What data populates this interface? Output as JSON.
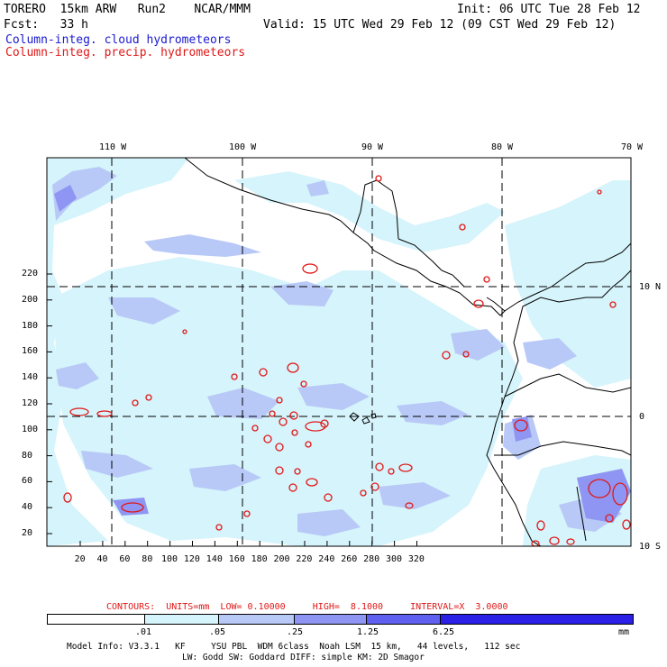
{
  "header": {
    "model": "TORERO  15km ARW   Run2    NCAR/MMM",
    "init": "Init: 06 UTC Tue 28 Feb 12",
    "fcst": "Fcst:   33 h",
    "valid": "Valid: 15 UTC Wed 29 Feb 12 (09 CST Wed 29 Feb 12)",
    "field1": "Column-integ. cloud hydrometeors",
    "field2": "Column-integ. precip. hydrometeors"
  },
  "map": {
    "lon_labels": [
      "110 W",
      "100 W",
      "90 W",
      "80 W",
      "70 W"
    ],
    "lat_labels": [
      "10 N",
      "0",
      "10 S"
    ],
    "y_ticks": [
      "220",
      "200",
      "180",
      "160",
      "140",
      "120",
      "100",
      "80",
      "60",
      "40",
      "20"
    ],
    "x_ticks": [
      "20",
      "40",
      "60",
      "80",
      "100",
      "120",
      "140",
      "160",
      "180",
      "200",
      "220",
      "240",
      "260",
      "280",
      "300",
      "320"
    ]
  },
  "contours": {
    "label": "CONTOURS:  UNITS=mm  LOW= 0.10000     HIGH=  8.1000     INTERVAL=X  3.0000"
  },
  "colorbar": {
    "labels": [
      ".01",
      ".05",
      ".25",
      "1.25",
      "6.25"
    ],
    "units": "mm",
    "colors": [
      "#ffffff",
      "#d6f4fb",
      "#b8c9f7",
      "#8f95f2",
      "#5f5ff0",
      "#2a20e6"
    ]
  },
  "footer": {
    "line1": "Model Info: V3.3.1   KF     YSU PBL  WDM 6class  Noah LSM  15 km,   44 levels,   112 sec",
    "line2": "LW: Godd SW: Goddard DIFF: simple KM: 2D Smagor"
  },
  "colors": {
    "cloud_light": "#d6f4fb",
    "cloud_mid": "#b8c9f7",
    "cloud_dark": "#8f95f2",
    "precip_contour": "#e01818",
    "text_blue": "#1a1ad0",
    "text_red": "#e01818"
  }
}
